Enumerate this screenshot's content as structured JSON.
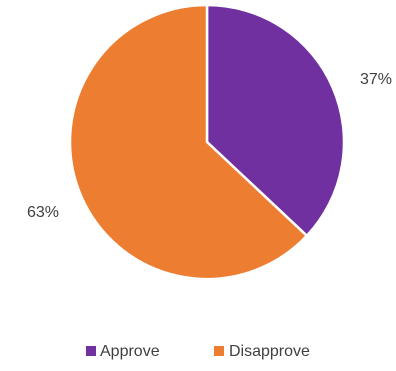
{
  "chart_data": {
    "type": "pie",
    "title": "",
    "categories": [
      "Approve",
      "Disapprove"
    ],
    "values": [
      37,
      63
    ],
    "data_labels": [
      "37%",
      "63%"
    ],
    "colors": [
      "#7030A0",
      "#ED7D31"
    ],
    "slice_border_color": "#FFFFFF",
    "start_angle_deg": 0,
    "direction": "clockwise",
    "legend": {
      "placement": "bottom",
      "items": [
        {
          "label": "Approve",
          "color": "#7030A0"
        },
        {
          "label": "Disapprove",
          "color": "#ED7D31"
        }
      ]
    }
  }
}
